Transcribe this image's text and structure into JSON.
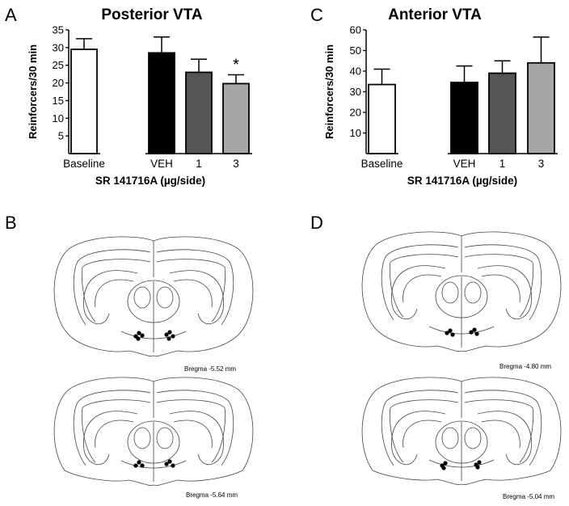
{
  "panels": {
    "a": {
      "letter": "A"
    },
    "b": {
      "letter": "B"
    },
    "c": {
      "letter": "C"
    },
    "d": {
      "letter": "D"
    }
  },
  "chart_data": [
    {
      "type": "bar",
      "title": "Posterior VTA",
      "xlabel": "SR 141716A (µg/side)",
      "ylabel": "Reinforcers/30 min",
      "categories": [
        "Baseline",
        "VEH",
        "1",
        "3"
      ],
      "values": [
        29.5,
        28.5,
        23,
        19.8
      ],
      "errors": [
        3,
        4.5,
        3.7,
        2.5
      ],
      "colors": [
        "#ffffff",
        "#000000",
        "#555555",
        "#a6a6a6"
      ],
      "ylim": [
        0,
        35
      ],
      "yticks": [
        5,
        10,
        15,
        20,
        25,
        30,
        35
      ],
      "annotations": [
        {
          "category": "3",
          "text": "*"
        }
      ]
    },
    {
      "type": "bar",
      "title": "Anterior VTA",
      "xlabel": "SR 141716A (µg/side)",
      "ylabel": "Reinforcers/30 min",
      "categories": [
        "Baseline",
        "VEH",
        "1",
        "3"
      ],
      "values": [
        33.5,
        34.5,
        39,
        44
      ],
      "errors": [
        7.5,
        8,
        6,
        12.5
      ],
      "colors": [
        "#ffffff",
        "#000000",
        "#555555",
        "#a6a6a6"
      ],
      "ylim": [
        0,
        60
      ],
      "yticks": [
        10,
        20,
        30,
        40,
        50,
        60
      ],
      "annotations": []
    }
  ],
  "brain_sections": [
    {
      "label": "Bregma -5.52 mm"
    },
    {
      "label": "Bregma -5.64 mm"
    },
    {
      "label": "Bregma -4.80 mm"
    },
    {
      "label": "Bregma -5.04 mm"
    }
  ]
}
